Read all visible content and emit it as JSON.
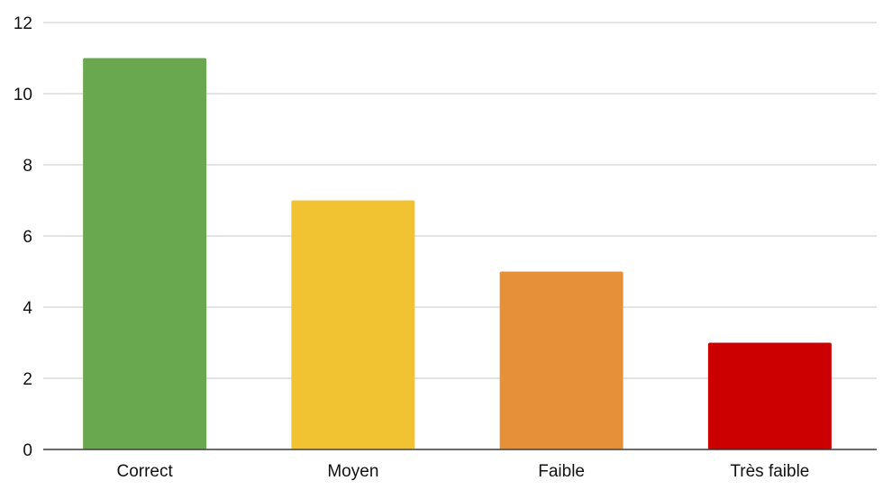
{
  "chart_data": {
    "type": "bar",
    "categories": [
      "Correct",
      "Moyen",
      "Faible",
      "Très faible"
    ],
    "values": [
      11,
      7,
      5,
      3
    ],
    "colors": [
      "#6aa84f",
      "#f1c232",
      "#e69138",
      "#cc0000"
    ],
    "ylim": [
      0,
      12
    ],
    "yticks": [
      "0",
      "2",
      "4",
      "6",
      "8",
      "10",
      "12"
    ],
    "grid": true,
    "legend": "none",
    "title": "",
    "xlabel": "",
    "ylabel": ""
  }
}
